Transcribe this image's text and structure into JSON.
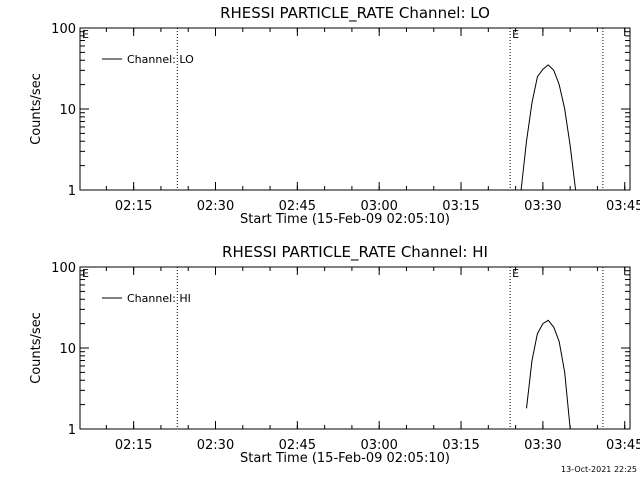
{
  "chart_data": [
    {
      "type": "line",
      "title": "RHESSI PARTICLE_RATE Channel: LO",
      "xlabel": "Start Time (15-Feb-09 02:05:10)",
      "ylabel": "Counts/sec",
      "yscale": "log",
      "ylim": [
        1,
        100
      ],
      "yticks": [
        "1",
        "10",
        "100"
      ],
      "xticks": [
        "02:15",
        "02:30",
        "02:45",
        "03:00",
        "03:15",
        "03:30",
        "03:45"
      ],
      "grid": false,
      "legend_placement": "top-left",
      "series": [
        {
          "name": "Channel: LO",
          "x": [
            "03:26",
            "03:27",
            "03:28",
            "03:29",
            "03:30",
            "03:31",
            "03:32",
            "03:33",
            "03:34",
            "03:35",
            "03:36"
          ],
          "values": [
            1,
            4,
            12,
            25,
            31,
            35,
            30,
            20,
            10,
            3.5,
            1
          ]
        }
      ],
      "event_markers": [
        {
          "time": "02:05:10",
          "label": "E"
        },
        {
          "time": "03:24",
          "label": "E"
        }
      ],
      "vertical_lines": [
        "02:23",
        "03:24",
        "03:41"
      ]
    },
    {
      "type": "line",
      "title": "RHESSI PARTICLE_RATE Channel: HI",
      "xlabel": "Start Time (15-Feb-09 02:05:10)",
      "ylabel": "Counts/sec",
      "yscale": "log",
      "ylim": [
        1,
        100
      ],
      "yticks": [
        "1",
        "10",
        "100"
      ],
      "xticks": [
        "02:15",
        "02:30",
        "02:45",
        "03:00",
        "03:15",
        "03:30",
        "03:45"
      ],
      "grid": false,
      "legend_placement": "top-left",
      "series": [
        {
          "name": "Channel: HI",
          "x": [
            "03:27",
            "03:28",
            "03:29",
            "03:30",
            "03:31",
            "03:32",
            "03:33",
            "03:34",
            "03:35"
          ],
          "values": [
            1.8,
            7,
            15,
            20,
            22,
            18,
            12,
            5,
            1
          ]
        }
      ],
      "event_markers": [
        {
          "time": "02:05:10",
          "label": "E"
        },
        {
          "time": "03:24",
          "label": "E"
        }
      ],
      "vertical_lines": [
        "02:23",
        "03:24",
        "03:41"
      ]
    }
  ],
  "footer": {
    "timestamp": "13-Oct-2021 22:25"
  }
}
